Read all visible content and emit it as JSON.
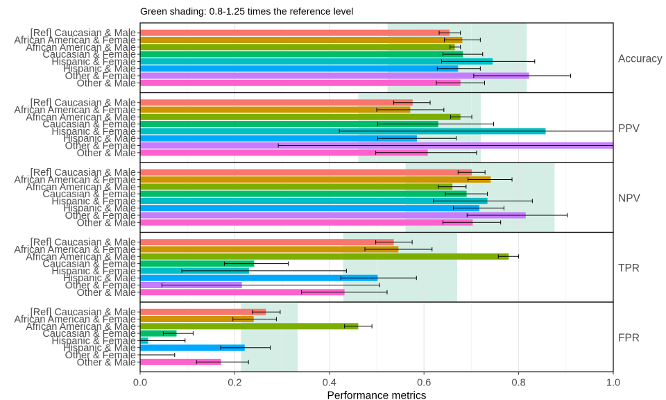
{
  "subtitle": "Green shading: 0.8-1.25 times the reference level",
  "chart_data": {
    "type": "bar",
    "orientation": "horizontal",
    "facet_direction": "rows",
    "xlabel": "Performance metrics",
    "xlim": [
      0,
      1
    ],
    "xticks": [
      0,
      0.2,
      0.4,
      0.6,
      0.8,
      1
    ],
    "xtick_labels": [
      "0.0",
      "0.2",
      "0.4",
      "0.6",
      "0.8",
      "1.0"
    ],
    "grid": true,
    "categories": [
      "[Ref] Caucasian & Male",
      "African American & Female",
      "African American & Male",
      "Caucasian & Female",
      "Hispanic & Female",
      "Hispanic & Male",
      "Other & Female",
      "Other & Male"
    ],
    "colors": [
      "#F8766D",
      "#CD9600",
      "#7CAE00",
      "#00BE67",
      "#00BFC4",
      "#00A9FF",
      "#C77CFF",
      "#FF61CC"
    ],
    "shading_color": "#d4eee5",
    "panels": [
      {
        "label": "Accuracy",
        "shade": [
          0.523,
          0.817
        ],
        "values": [
          0.654,
          0.681,
          0.665,
          0.682,
          0.745,
          0.672,
          0.822,
          0.677
        ],
        "ci_low": [
          0.632,
          0.643,
          0.655,
          0.64,
          0.637,
          0.628,
          0.705,
          0.626
        ],
        "ci_high": [
          0.677,
          0.719,
          0.677,
          0.724,
          0.834,
          0.719,
          0.91,
          0.728
        ]
      },
      {
        "label": "PPV",
        "shade": [
          0.461,
          0.72
        ],
        "values": [
          0.576,
          0.571,
          0.677,
          0.63,
          0.857,
          0.585,
          1.0,
          0.608
        ],
        "ci_low": [
          0.536,
          0.5,
          0.656,
          0.502,
          0.421,
          0.502,
          0.292,
          0.498
        ],
        "ci_high": [
          0.613,
          0.642,
          0.701,
          0.747,
          1.0,
          0.668,
          1.0,
          0.711
        ]
      },
      {
        "label": "NPV",
        "shade": [
          0.561,
          0.876
        ],
        "values": [
          0.701,
          0.741,
          0.66,
          0.69,
          0.734,
          0.717,
          0.815,
          0.703
        ],
        "ci_low": [
          0.672,
          0.693,
          0.63,
          0.645,
          0.62,
          0.662,
          0.691,
          0.64
        ],
        "ci_high": [
          0.729,
          0.786,
          0.689,
          0.734,
          0.829,
          0.769,
          0.903,
          0.762
        ]
      },
      {
        "label": "TPR",
        "shade": [
          0.429,
          0.67
        ],
        "values": [
          0.536,
          0.546,
          0.779,
          0.241,
          0.23,
          0.502,
          0.215,
          0.432
        ],
        "ci_low": [
          0.498,
          0.475,
          0.757,
          0.178,
          0.088,
          0.424,
          0.046,
          0.341
        ],
        "ci_high": [
          0.575,
          0.617,
          0.8,
          0.313,
          0.436,
          0.584,
          0.506,
          0.522
        ]
      },
      {
        "label": "FPR",
        "shade": [
          0.213,
          0.333
        ],
        "values": [
          0.266,
          0.24,
          0.461,
          0.077,
          0.017,
          0.221,
          0.0,
          0.171
        ],
        "ci_low": [
          0.237,
          0.196,
          0.432,
          0.049,
          0.0,
          0.17,
          0.0,
          0.119
        ],
        "ci_high": [
          0.296,
          0.288,
          0.49,
          0.112,
          0.095,
          0.275,
          0.073,
          0.229
        ]
      }
    ]
  }
}
